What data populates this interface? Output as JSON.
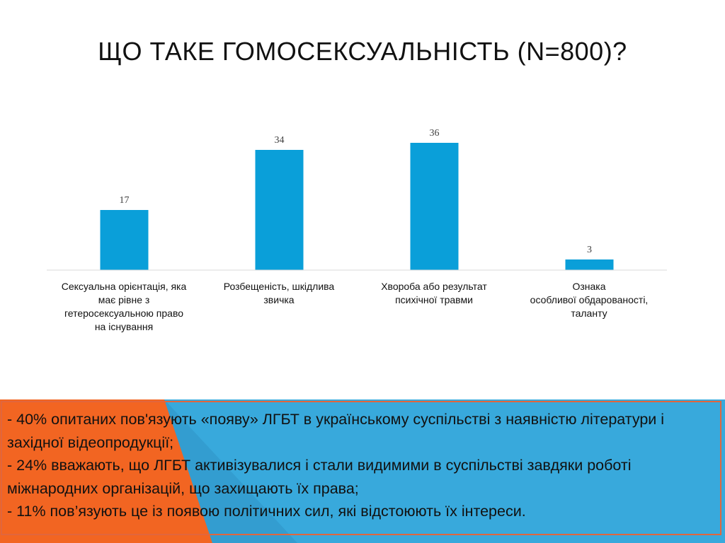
{
  "title": "ЩО ТАКЕ ГОМОСЕКСУАЛЬНІСТЬ (N=800)?",
  "colors": {
    "bar": "#0a9fd9",
    "axis": "#d9d9d9",
    "box": "#38a9dc",
    "accent": "#f26522"
  },
  "chart_data": {
    "type": "bar",
    "categories": [
      "Сексуальна орієнтація, яка має рівне з гетеросексуальною право на існування",
      "Розбещеність, шкідлива звичка",
      "Хвороба або результат психічної травми",
      "Ознака особливої обдарованості, таланту"
    ],
    "category_lines": [
      [
        "Сексуальна орієнтація, яка",
        "має рівне з",
        "гетеросексуальною право",
        "на існування"
      ],
      [
        "Розбещеність, шкідлива",
        "звичка"
      ],
      [
        "Хвороба або результат",
        "психічної травми"
      ],
      [
        "Ознака",
        "особливої обдарованості,",
        "таланту"
      ]
    ],
    "values": [
      17,
      34,
      36,
      3
    ],
    "data_labels": [
      "17",
      "34",
      "36",
      "3"
    ],
    "ylim": [
      0,
      40
    ],
    "grid": false,
    "legend": "none"
  },
  "bullets": [
    "- 40% опитаних пов'язують «появу» ЛГБТ в українському суспільстві  з наявністю літератури і західної відеопродукції;",
    "- 24% вважають, що ЛГБТ активізувалися і стали видимими в суспільстві завдяки роботі міжнародних організацій, що захищають їх права;",
    "- 11% пов’язують це із появою політичних сил, які відстоюють  їх інтереси."
  ]
}
